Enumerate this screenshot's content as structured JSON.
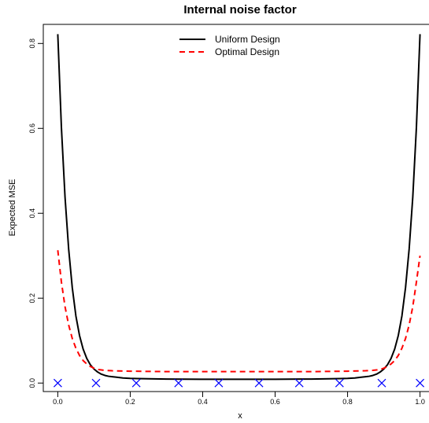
{
  "chart_data": {
    "type": "line",
    "title": "Internal noise factor",
    "xlabel": "x",
    "ylabel": "Expected MSE",
    "xlim": [
      -0.04,
      1.04
    ],
    "ylim": [
      -0.02,
      0.845
    ],
    "x_ticks": [
      "0.0",
      "0.2",
      "0.4",
      "0.6",
      "0.8",
      "1.0"
    ],
    "y_ticks": [
      "0.0",
      "0.2",
      "0.4",
      "0.6",
      "0.8"
    ],
    "legend_position": "top-center",
    "series": [
      {
        "name": "Uniform Design",
        "color": "#000000",
        "style": "solid",
        "x": [
          0.0,
          0.01,
          0.02,
          0.03,
          0.04,
          0.05,
          0.06,
          0.07,
          0.08,
          0.09,
          0.1,
          0.11,
          0.12,
          0.13,
          0.14,
          0.15,
          0.16,
          0.18,
          0.2,
          0.22,
          0.25,
          0.3,
          0.4,
          0.5,
          0.6,
          0.7,
          0.75,
          0.78,
          0.8,
          0.82,
          0.84,
          0.85,
          0.86,
          0.87,
          0.88,
          0.89,
          0.9,
          0.91,
          0.92,
          0.93,
          0.94,
          0.95,
          0.96,
          0.97,
          0.98,
          0.99,
          1.0
        ],
        "y": [
          0.822,
          0.602,
          0.438,
          0.316,
          0.225,
          0.158,
          0.112,
          0.08,
          0.058,
          0.043,
          0.033,
          0.026,
          0.021,
          0.018,
          0.016,
          0.015,
          0.014,
          0.012,
          0.011,
          0.0105,
          0.01,
          0.0095,
          0.009,
          0.009,
          0.009,
          0.0095,
          0.01,
          0.0105,
          0.011,
          0.012,
          0.014,
          0.015,
          0.016,
          0.018,
          0.021,
          0.026,
          0.033,
          0.043,
          0.058,
          0.08,
          0.112,
          0.158,
          0.225,
          0.316,
          0.438,
          0.602,
          0.822
        ]
      },
      {
        "name": "Optimal Design",
        "color": "#ff0000",
        "style": "dashed",
        "x": [
          0.0,
          0.01,
          0.02,
          0.03,
          0.04,
          0.05,
          0.06,
          0.07,
          0.08,
          0.09,
          0.1,
          0.11,
          0.12,
          0.13,
          0.15,
          0.2,
          0.3,
          0.4,
          0.5,
          0.6,
          0.7,
          0.8,
          0.85,
          0.87,
          0.88,
          0.89,
          0.9,
          0.91,
          0.92,
          0.93,
          0.94,
          0.95,
          0.96,
          0.97,
          0.98,
          0.99,
          1.0
        ],
        "y": [
          0.313,
          0.238,
          0.18,
          0.137,
          0.105,
          0.082,
          0.065,
          0.053,
          0.045,
          0.039,
          0.035,
          0.032,
          0.031,
          0.03,
          0.029,
          0.028,
          0.027,
          0.027,
          0.027,
          0.027,
          0.027,
          0.028,
          0.029,
          0.03,
          0.031,
          0.032,
          0.035,
          0.039,
          0.045,
          0.053,
          0.065,
          0.082,
          0.105,
          0.137,
          0.18,
          0.238,
          0.3
        ]
      }
    ],
    "design_points": {
      "marker": "x",
      "color": "#0000ff",
      "x": [
        0.0,
        0.1056,
        0.2167,
        0.3333,
        0.4444,
        0.5556,
        0.6667,
        0.7778,
        0.8944,
        1.0
      ],
      "y": [
        0,
        0,
        0,
        0,
        0,
        0,
        0,
        0,
        0,
        0
      ]
    }
  }
}
